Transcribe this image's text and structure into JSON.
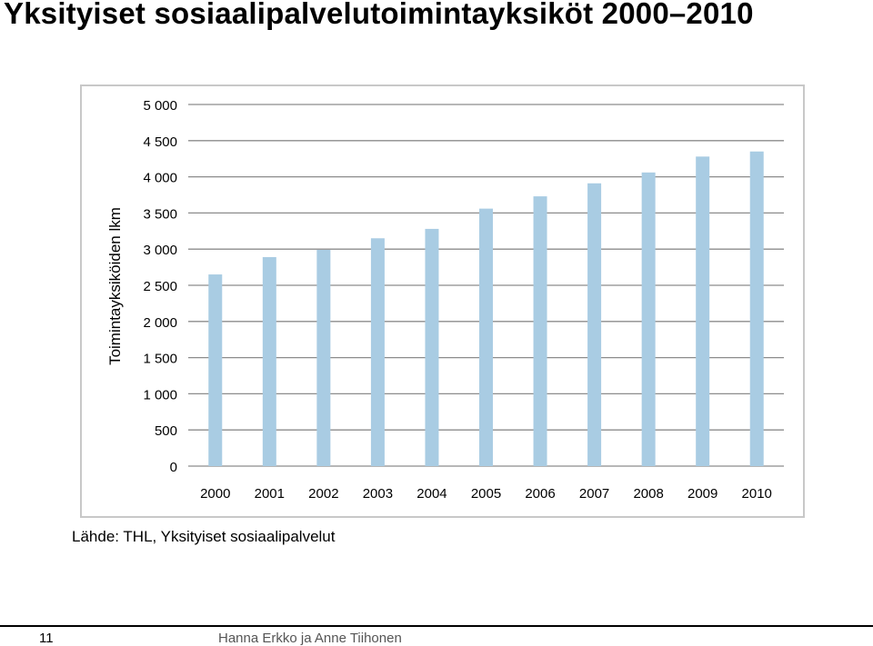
{
  "slide": {
    "title": "Yksityiset sosiaalipalvelutoimintayksiköt 2000–2010",
    "source": "Lähde: THL, Yksityiset sosiaalipalvelut",
    "page_number": "11",
    "authors": "Hanna Erkko ja Anne Tiihonen"
  },
  "colors": {
    "bar": "#a9cce3",
    "grid": "#8c8c8c",
    "frame": "#c8c8c8"
  },
  "chart_data": {
    "type": "bar",
    "title": "",
    "xlabel": "",
    "ylabel": "Toimintayksiköiden lkm",
    "categories": [
      "2000",
      "2001",
      "2002",
      "2003",
      "2004",
      "2005",
      "2006",
      "2007",
      "2008",
      "2009",
      "2010"
    ],
    "values": [
      2650,
      2890,
      2990,
      3150,
      3280,
      3560,
      3730,
      3910,
      4060,
      4280,
      4350
    ],
    "ylim": [
      0,
      5000
    ],
    "yticks": [
      0,
      500,
      1000,
      1500,
      2000,
      2500,
      3000,
      3500,
      4000,
      4500,
      5000
    ],
    "ytick_labels": [
      "0",
      "500",
      "1 000",
      "1 500",
      "2 000",
      "2 500",
      "3 000",
      "3 500",
      "4 000",
      "4 500",
      "5 000"
    ],
    "grid": true,
    "legend": "none"
  }
}
